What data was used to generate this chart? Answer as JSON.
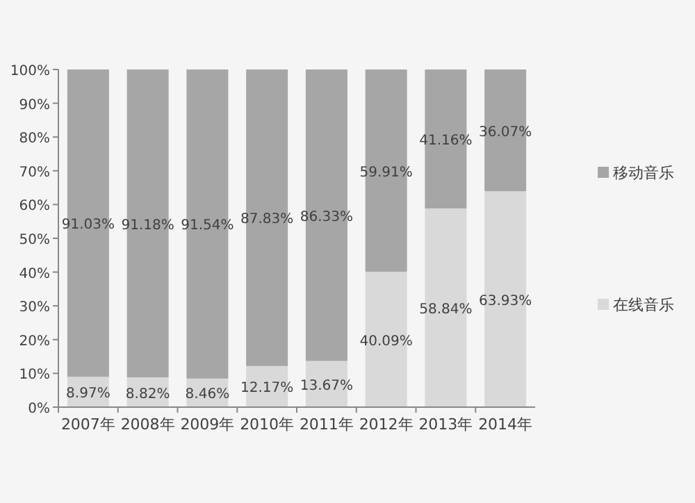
{
  "chart_data": {
    "type": "bar",
    "stacked": true,
    "categories": [
      "2007年",
      "2008年",
      "2009年",
      "2010年",
      "2011年",
      "2012年",
      "2013年",
      "2014年"
    ],
    "series": [
      {
        "name": "在线音乐",
        "color": "#d9d9d9",
        "values": [
          8.97,
          8.82,
          8.46,
          12.17,
          13.67,
          40.09,
          58.84,
          63.93
        ],
        "value_labels": [
          "8.97%",
          "8.82%",
          "8.46%",
          "12.17%",
          "13.67%",
          "40.09%",
          "58.84%",
          "63.93%"
        ]
      },
      {
        "name": "移动音乐",
        "color": "#a6a6a6",
        "values": [
          91.03,
          91.18,
          91.54,
          87.83,
          86.33,
          59.91,
          41.16,
          36.07
        ],
        "value_labels": [
          "91.03%",
          "91.18%",
          "91.54%",
          "87.83%",
          "86.33%",
          "59.91%",
          "41.16%",
          "36.07%"
        ]
      }
    ],
    "ylim": [
      0,
      100
    ],
    "yticks": [
      {
        "value": 0,
        "label": "0%"
      },
      {
        "value": 10,
        "label": "10%"
      },
      {
        "value": 20,
        "label": "20%"
      },
      {
        "value": 30,
        "label": "30%"
      },
      {
        "value": 40,
        "label": "40%"
      },
      {
        "value": 50,
        "label": "50%"
      },
      {
        "value": 60,
        "label": "60%"
      },
      {
        "value": 70,
        "label": "70%"
      },
      {
        "value": 80,
        "label": "80%"
      },
      {
        "value": 90,
        "label": "90%"
      },
      {
        "value": 100,
        "label": "100%"
      }
    ],
    "grid": false,
    "legend": "right"
  }
}
